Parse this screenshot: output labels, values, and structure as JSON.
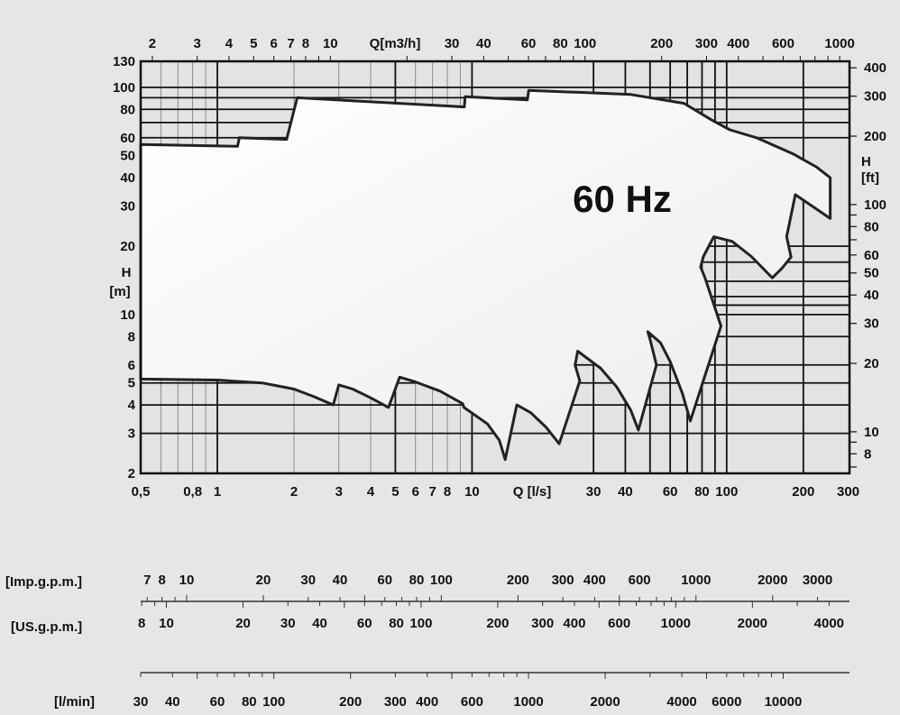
{
  "chart_data": {
    "type": "area",
    "annotation": "60 Hz",
    "xlabel_bottom": "Q [l/s]",
    "xlabel_top": "Q[m3/h]",
    "ylabel_left": [
      "H",
      "[m]"
    ],
    "ylabel_right": [
      "H",
      "[ft]"
    ],
    "x_scale": "log",
    "y_scale": "log",
    "xlim": [
      0.5,
      300
    ],
    "ylim": [
      2,
      130
    ],
    "grid": true,
    "x_ticks_bottom": [
      {
        "v": 0.5,
        "label": "0,5"
      },
      {
        "v": 0.8,
        "label": "0,8"
      },
      {
        "v": 1,
        "label": "1"
      },
      {
        "v": 2,
        "label": "2"
      },
      {
        "v": 3,
        "label": "3"
      },
      {
        "v": 4,
        "label": "4"
      },
      {
        "v": 5,
        "label": "5"
      },
      {
        "v": 6,
        "label": "6"
      },
      {
        "v": 7,
        "label": "7"
      },
      {
        "v": 8,
        "label": "8"
      },
      {
        "v": 10,
        "label": "10"
      },
      {
        "v": 30,
        "label": "30"
      },
      {
        "v": 40,
        "label": "40"
      },
      {
        "v": 60,
        "label": "60"
      },
      {
        "v": 80,
        "label": "80"
      },
      {
        "v": 100,
        "label": "100"
      },
      {
        "v": 200,
        "label": "200"
      },
      {
        "v": 300,
        "label": "300"
      }
    ],
    "x_ticks_top_m3h": [
      "2",
      "3",
      "4",
      "5",
      "6",
      "7",
      "8",
      "10",
      "30",
      "40",
      "60",
      "80",
      "100",
      "200",
      "300",
      "400",
      "600",
      "1000"
    ],
    "y_ticks_left": [
      "2",
      "3",
      "4",
      "5",
      "6",
      "8",
      "10",
      "20",
      "30",
      "40",
      "50",
      "60",
      "80",
      "100",
      "130"
    ],
    "y_ticks_right_ft": [
      "8",
      "10",
      "20",
      "30",
      "40",
      "50",
      "60",
      "80",
      "100",
      "200",
      "300",
      "400"
    ],
    "envelope": {
      "x_unit": "l/s",
      "y_unit": "m",
      "points": [
        [
          0.5,
          56
        ],
        [
          1.2,
          55
        ],
        [
          1.22,
          60
        ],
        [
          1.87,
          59
        ],
        [
          2.06,
          90
        ],
        [
          9.33,
          82
        ],
        [
          9.4,
          91
        ],
        [
          16.5,
          88
        ],
        [
          16.7,
          97
        ],
        [
          42,
          93
        ],
        [
          68,
          85
        ],
        [
          87,
          72
        ],
        [
          103,
          65
        ],
        [
          131,
          60
        ],
        [
          182,
          51
        ],
        [
          225,
          44.6
        ],
        [
          255,
          40
        ],
        [
          255,
          26.5
        ],
        [
          186,
          33.7
        ],
        [
          172,
          22
        ],
        [
          179,
          17.9
        ],
        [
          165,
          16
        ],
        [
          151,
          14.5
        ],
        [
          125,
          18
        ],
        [
          105,
          21
        ],
        [
          89,
          22
        ],
        [
          81,
          18
        ],
        [
          79,
          16.2
        ],
        [
          82,
          14.6
        ],
        [
          95,
          8.9
        ],
        [
          72,
          3.4
        ],
        [
          67,
          4.5
        ],
        [
          60,
          6.2
        ],
        [
          55,
          7.5
        ],
        [
          49,
          8.4
        ],
        [
          50,
          7.8
        ],
        [
          53,
          6
        ],
        [
          45,
          3.1
        ],
        [
          42,
          3.8
        ],
        [
          37,
          4.8
        ],
        [
          32,
          5.8
        ],
        [
          26,
          6.9
        ],
        [
          25.4,
          6
        ],
        [
          26.5,
          5.1
        ],
        [
          22,
          2.7
        ],
        [
          19.5,
          3.2
        ],
        [
          17,
          3.7
        ],
        [
          15,
          4
        ],
        [
          13.5,
          2.3
        ],
        [
          12.8,
          2.8
        ],
        [
          11.5,
          3.3
        ],
        [
          9.3,
          3.9
        ],
        [
          9.2,
          4.05
        ],
        [
          7.5,
          4.6
        ],
        [
          6,
          5.05
        ],
        [
          5.2,
          5.3
        ],
        [
          4.7,
          3.9
        ],
        [
          4.0,
          4.3
        ],
        [
          3.4,
          4.7
        ],
        [
          3.0,
          4.9
        ],
        [
          2.85,
          4.0
        ],
        [
          2.4,
          4.35
        ],
        [
          2.0,
          4.7
        ],
        [
          1.5,
          5.0
        ],
        [
          1.0,
          5.15
        ],
        [
          0.5,
          5.2
        ]
      ]
    },
    "secondary_scales": [
      {
        "label": "[Imp.g.p.m.]",
        "factor": 13.198,
        "ticks": [
          "7",
          "8",
          "10",
          "20",
          "30",
          "40",
          "60",
          "80",
          "100",
          "200",
          "300",
          "400",
          "600",
          "1000",
          "2000",
          "3000"
        ]
      },
      {
        "label": "[US.g.p.m.]",
        "factor": 15.85,
        "ticks": [
          "8",
          "10",
          "20",
          "30",
          "40",
          "60",
          "80",
          "100",
          "200",
          "300",
          "400",
          "600",
          "1000",
          "2000",
          "4000"
        ]
      },
      {
        "label": "[l/min]",
        "factor": 60,
        "ticks": [
          "30",
          "40",
          "60",
          "80",
          "100",
          "200",
          "300",
          "400",
          "600",
          "1000",
          "2000",
          "4000",
          "6000",
          "10000"
        ]
      }
    ],
    "colors": {
      "background": "#e6e6e6",
      "plot": "#e3e3e3",
      "envelope_fill": "#ffffff",
      "line": "#222222"
    }
  }
}
